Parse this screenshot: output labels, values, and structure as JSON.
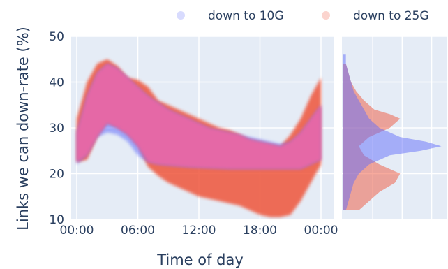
{
  "chart_data": {
    "type": "area",
    "xlabel": "Time of day",
    "ylabel": "Links we can down-rate (%)",
    "x_ticks": [
      "00:00",
      "06:00",
      "12:00",
      "18:00",
      "00:00"
    ],
    "y_ticks": [
      10,
      20,
      30,
      40,
      50
    ],
    "ylim": [
      10,
      50
    ],
    "x_range_hours": [
      0,
      24
    ],
    "legend_position": "top-right",
    "grid": true,
    "series": [
      {
        "name": "down to 10G",
        "color": "#636efa",
        "x": [
          0,
          1,
          2,
          3,
          4,
          5,
          6,
          7,
          8,
          9,
          10,
          11,
          12,
          13,
          14,
          15,
          16,
          17,
          18,
          19,
          20,
          21,
          22,
          23,
          24
        ],
        "upper": [
          29,
          37,
          42,
          44,
          43,
          41,
          39,
          37,
          35.5,
          34,
          33,
          32,
          31,
          30,
          29.5,
          29,
          28.5,
          28,
          27.5,
          27,
          26.5,
          27,
          29,
          32,
          35
        ],
        "lower": [
          22,
          24,
          28,
          29,
          28.5,
          27,
          24,
          22.5,
          22,
          21.8,
          21.6,
          21.4,
          21.3,
          21.2,
          21.1,
          21,
          21,
          21,
          21,
          21,
          21,
          21,
          21,
          22,
          23
        ],
        "histogram": {
          "bins": [
            12,
            14,
            16,
            18,
            20,
            22,
            24,
            25,
            26,
            27,
            28,
            30,
            32,
            34,
            36,
            38,
            40,
            42,
            44,
            46
          ],
          "counts": [
            1,
            2,
            3,
            4,
            6,
            10,
            18,
            30,
            38,
            32,
            22,
            14,
            10,
            8,
            6,
            4,
            3,
            2,
            1,
            1
          ]
        }
      },
      {
        "name": "down to 25G",
        "color": "#ef553b",
        "x": [
          0,
          1,
          2,
          3,
          4,
          5,
          6,
          7,
          8,
          9,
          10,
          11,
          12,
          13,
          14,
          15,
          16,
          17,
          18,
          19,
          20,
          21,
          22,
          23,
          24
        ],
        "upper": [
          32,
          40,
          44,
          45,
          43.5,
          41,
          40.5,
          39,
          36,
          35,
          34,
          33,
          32,
          31,
          30,
          29.5,
          28.5,
          27.5,
          27,
          26.5,
          26,
          28.5,
          32,
          37,
          41
        ],
        "lower": [
          22.5,
          23,
          28,
          31,
          30,
          28.5,
          26,
          21.5,
          19.5,
          18,
          17,
          16,
          15,
          14.5,
          14,
          13.5,
          13,
          12,
          11,
          10.5,
          10.5,
          11,
          14,
          18,
          22
        ],
        "histogram": {
          "bins": [
            12,
            14,
            16,
            18,
            20,
            22,
            24,
            26,
            28,
            30,
            32,
            33,
            34,
            36,
            38,
            40,
            42,
            44
          ],
          "counts": [
            6,
            10,
            14,
            20,
            22,
            14,
            8,
            6,
            10,
            18,
            22,
            18,
            12,
            8,
            5,
            3,
            2,
            1
          ]
        }
      }
    ]
  }
}
